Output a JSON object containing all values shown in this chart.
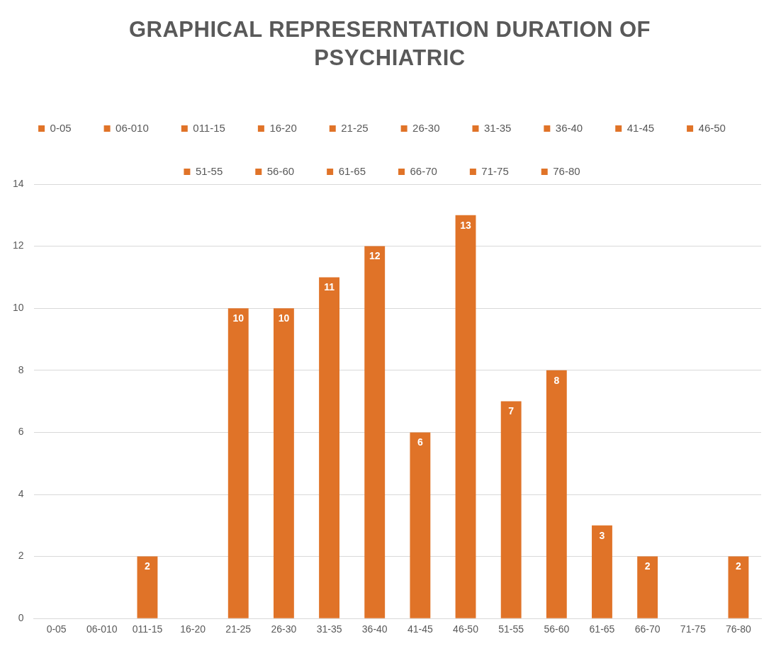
{
  "chart_data": {
    "type": "bar",
    "title": "GRAPHICAL REPRESERNTATION DURATION OF PSYCHIATRIC",
    "categories": [
      "0-05",
      "06-010",
      "011-15",
      "16-20",
      "21-25",
      "26-30",
      "31-35",
      "36-40",
      "41-45",
      "46-50",
      "51-55",
      "56-60",
      "61-65",
      "66-70",
      "71-75",
      "76-80"
    ],
    "series": [
      {
        "name": "0-05",
        "color": "#e07328",
        "values": [
          0,
          null,
          null,
          null,
          null,
          null,
          null,
          null,
          null,
          null,
          null,
          null,
          null,
          null,
          null,
          null
        ]
      },
      {
        "name": "06-010",
        "color": "#e07328",
        "values": [
          null,
          0,
          null,
          null,
          null,
          null,
          null,
          null,
          null,
          null,
          null,
          null,
          null,
          null,
          null,
          null
        ]
      },
      {
        "name": "011-15",
        "color": "#e07328",
        "values": [
          null,
          null,
          2,
          null,
          null,
          null,
          null,
          null,
          null,
          null,
          null,
          null,
          null,
          null,
          null,
          null
        ],
        "value_labels": [
          null,
          null,
          "2",
          null,
          null,
          null,
          null,
          null,
          null,
          null,
          null,
          null,
          null,
          null,
          null,
          null
        ]
      },
      {
        "name": "16-20",
        "color": "#e07328",
        "values": [
          null,
          null,
          null,
          0,
          null,
          null,
          null,
          null,
          null,
          null,
          null,
          null,
          null,
          null,
          null,
          null
        ]
      },
      {
        "name": "21-25",
        "color": "#e07328",
        "values": [
          null,
          null,
          null,
          null,
          10,
          null,
          null,
          null,
          null,
          null,
          null,
          null,
          null,
          null,
          null,
          null
        ],
        "value_labels": [
          null,
          null,
          null,
          null,
          "10",
          null,
          null,
          null,
          null,
          null,
          null,
          null,
          null,
          null,
          null,
          null
        ]
      },
      {
        "name": "26-30",
        "color": "#e07328",
        "values": [
          null,
          null,
          null,
          null,
          null,
          10,
          null,
          null,
          null,
          null,
          null,
          null,
          null,
          null,
          null,
          null
        ],
        "value_labels": [
          null,
          null,
          null,
          null,
          null,
          "10",
          null,
          null,
          null,
          null,
          null,
          null,
          null,
          null,
          null,
          null
        ]
      },
      {
        "name": "31-35",
        "color": "#e07328",
        "values": [
          null,
          null,
          null,
          null,
          null,
          null,
          11,
          null,
          null,
          null,
          null,
          null,
          null,
          null,
          null,
          null
        ],
        "value_labels": [
          null,
          null,
          null,
          null,
          null,
          null,
          "11",
          null,
          null,
          null,
          null,
          null,
          null,
          null,
          null,
          null
        ]
      },
      {
        "name": "36-40",
        "color": "#e07328",
        "values": [
          null,
          null,
          null,
          null,
          null,
          null,
          null,
          12,
          null,
          null,
          null,
          null,
          null,
          null,
          null,
          null
        ],
        "value_labels": [
          null,
          null,
          null,
          null,
          null,
          null,
          null,
          "12",
          null,
          null,
          null,
          null,
          null,
          null,
          null,
          null
        ]
      },
      {
        "name": "41-45",
        "color": "#e07328",
        "values": [
          null,
          null,
          null,
          null,
          null,
          null,
          null,
          null,
          6,
          null,
          null,
          null,
          null,
          null,
          null,
          null
        ],
        "value_labels": [
          null,
          null,
          null,
          null,
          null,
          null,
          null,
          null,
          "6",
          null,
          null,
          null,
          null,
          null,
          null,
          null
        ]
      },
      {
        "name": "46-50",
        "color": "#e07328",
        "values": [
          null,
          null,
          null,
          null,
          null,
          null,
          null,
          null,
          null,
          13,
          null,
          null,
          null,
          null,
          null,
          null
        ],
        "value_labels": [
          null,
          null,
          null,
          null,
          null,
          null,
          null,
          null,
          null,
          "13",
          null,
          null,
          null,
          null,
          null,
          null
        ]
      },
      {
        "name": "51-55",
        "color": "#e07328",
        "values": [
          null,
          null,
          null,
          null,
          null,
          null,
          null,
          null,
          null,
          null,
          7,
          null,
          null,
          null,
          null,
          null
        ],
        "value_labels": [
          null,
          null,
          null,
          null,
          null,
          null,
          null,
          null,
          null,
          null,
          "7",
          null,
          null,
          null,
          null,
          null
        ]
      },
      {
        "name": "56-60",
        "color": "#e07328",
        "values": [
          null,
          null,
          null,
          null,
          null,
          null,
          null,
          null,
          null,
          null,
          null,
          8,
          null,
          null,
          null,
          null
        ],
        "value_labels": [
          null,
          null,
          null,
          null,
          null,
          null,
          null,
          null,
          null,
          null,
          null,
          "8",
          null,
          null,
          null,
          null
        ]
      },
      {
        "name": "61-65",
        "color": "#e07328",
        "values": [
          null,
          null,
          null,
          null,
          null,
          null,
          null,
          null,
          null,
          null,
          null,
          null,
          3,
          null,
          null,
          null
        ],
        "value_labels": [
          null,
          null,
          null,
          null,
          null,
          null,
          null,
          null,
          null,
          null,
          null,
          null,
          "3",
          null,
          null,
          null
        ]
      },
      {
        "name": "66-70",
        "color": "#e07328",
        "values": [
          null,
          null,
          null,
          null,
          null,
          null,
          null,
          null,
          null,
          null,
          null,
          null,
          null,
          2,
          null,
          null
        ],
        "value_labels": [
          null,
          null,
          null,
          null,
          null,
          null,
          null,
          null,
          null,
          null,
          null,
          null,
          null,
          "2",
          null,
          null
        ]
      },
      {
        "name": "71-75",
        "color": "#e07328",
        "values": [
          null,
          null,
          null,
          null,
          null,
          null,
          null,
          null,
          null,
          null,
          null,
          null,
          null,
          null,
          0,
          null
        ]
      },
      {
        "name": "76-80",
        "color": "#e07328",
        "values": [
          null,
          null,
          null,
          null,
          null,
          null,
          null,
          null,
          null,
          null,
          null,
          null,
          null,
          null,
          null,
          2
        ],
        "value_labels": [
          null,
          null,
          null,
          null,
          null,
          null,
          null,
          null,
          null,
          null,
          null,
          null,
          null,
          null,
          null,
          "2"
        ]
      }
    ],
    "ylim": [
      0,
      14
    ],
    "yticks": [
      0,
      2,
      4,
      6,
      8,
      10,
      12,
      14
    ],
    "grid": "y",
    "legend": "top"
  }
}
